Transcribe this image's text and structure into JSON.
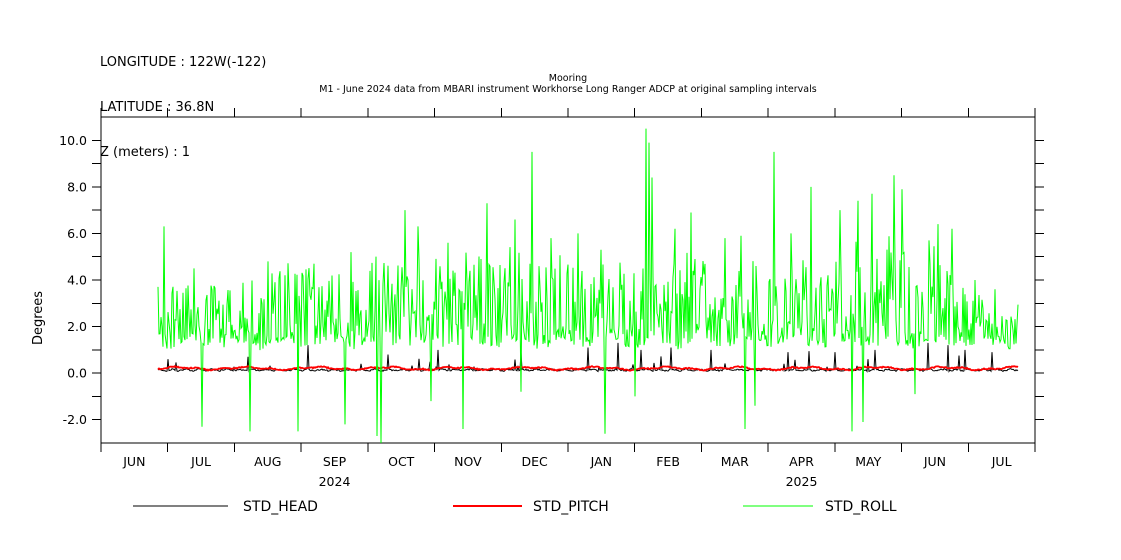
{
  "header": {
    "line1": "LONGITUDE : 122W(-122)",
    "line2": "LATITUDE : 36.8N",
    "line3": "Z (meters) : 1"
  },
  "chart_data": {
    "type": "line",
    "title": "Mooring",
    "subtitle": "M1 - June 2024 data from MBARI instrument Workhorse Long Ranger ADCP at original sampling intervals",
    "ylabel": "Degrees",
    "ylim": [
      -3,
      11
    ],
    "ytick_values": [
      -2,
      0,
      2,
      4,
      6,
      8,
      10
    ],
    "ytick_labels": [
      "-2.0",
      "0.0",
      "2.0",
      "4.0",
      "6.0",
      "8.0",
      "10.0"
    ],
    "ytick_minor_step": 1,
    "grid": false,
    "legend_position": "bottom",
    "x_month_labels": [
      "JUN",
      "JUL",
      "AUG",
      "SEP",
      "OCT",
      "NOV",
      "DEC",
      "JAN",
      "FEB",
      "MAR",
      "APR",
      "MAY",
      "JUN",
      "JUL"
    ],
    "year_labels": [
      {
        "text": "2024",
        "month_center": 3.5
      },
      {
        "text": "2025",
        "month_center": 10.5
      }
    ],
    "data_start_month": 0.85,
    "data_end_month": 13.74,
    "series": [
      {
        "name": "STD_HEAD",
        "color": "#000000",
        "width": 1,
        "base": 0.1,
        "noise": 0.07,
        "typical_range": [
          0.05,
          0.35
        ],
        "spikes": [
          [
            1.0,
            0.6
          ],
          [
            2.2,
            0.7
          ],
          [
            3.1,
            1.2
          ],
          [
            4.3,
            0.8
          ],
          [
            5.05,
            1.0
          ],
          [
            6.3,
            0.9
          ],
          [
            7.3,
            1.1
          ],
          [
            7.75,
            1.3
          ],
          [
            8.1,
            1.0
          ],
          [
            8.55,
            1.1
          ],
          [
            9.15,
            1.0
          ],
          [
            10.3,
            0.9
          ],
          [
            11.0,
            0.9
          ],
          [
            11.6,
            1.0
          ],
          [
            12.4,
            1.3
          ],
          [
            12.7,
            1.2
          ],
          [
            12.95,
            1.0
          ],
          [
            13.35,
            0.9
          ]
        ]
      },
      {
        "name": "STD_PITCH",
        "color": "#ff0000",
        "width": 1.8,
        "base": 0.18,
        "noise": 0.05,
        "typical_range": [
          0.1,
          0.3
        ],
        "spikes": []
      },
      {
        "name": "STD_ROLL",
        "color": "#00ff00",
        "width": 1,
        "base": 1.4,
        "noise": 0.5,
        "typical_range": [
          1.2,
          4.5
        ],
        "envelope": [
          [
            0.85,
            2.6
          ],
          [
            1.2,
            1.6
          ],
          [
            2.0,
            1.8
          ],
          [
            3.0,
            2.2
          ],
          [
            3.6,
            2.4
          ],
          [
            4.3,
            2.5
          ],
          [
            5.0,
            2.3
          ],
          [
            5.8,
            2.6
          ],
          [
            6.5,
            2.6
          ],
          [
            7.2,
            2.2
          ],
          [
            7.8,
            2.3
          ],
          [
            8.5,
            2.7
          ],
          [
            9.2,
            2.4
          ],
          [
            9.8,
            2.6
          ],
          [
            10.5,
            2.5
          ],
          [
            11.2,
            2.7
          ],
          [
            11.8,
            3.3
          ],
          [
            12.3,
            3.0
          ],
          [
            12.8,
            2.2
          ],
          [
            13.3,
            1.5
          ],
          [
            13.74,
            1.3
          ]
        ],
        "spikes": [
          [
            0.95,
            6.3
          ],
          [
            1.4,
            4.5
          ],
          [
            2.5,
            4.8
          ],
          [
            3.2,
            4.7
          ],
          [
            3.75,
            5.2
          ],
          [
            4.55,
            7.0
          ],
          [
            4.75,
            6.3
          ],
          [
            5.2,
            5.6
          ],
          [
            5.78,
            7.3
          ],
          [
            6.2,
            6.6
          ],
          [
            6.46,
            9.5
          ],
          [
            6.75,
            5.8
          ],
          [
            7.15,
            6.0
          ],
          [
            7.5,
            5.3
          ],
          [
            8.17,
            10.5
          ],
          [
            8.21,
            9.9
          ],
          [
            8.26,
            8.4
          ],
          [
            8.6,
            6.2
          ],
          [
            8.85,
            6.9
          ],
          [
            9.35,
            5.8
          ],
          [
            9.6,
            5.9
          ],
          [
            10.09,
            9.5
          ],
          [
            10.35,
            6.0
          ],
          [
            10.64,
            8.0
          ],
          [
            11.08,
            7.0
          ],
          [
            11.35,
            7.4
          ],
          [
            11.55,
            7.7
          ],
          [
            11.88,
            8.5
          ],
          [
            12.0,
            7.9
          ],
          [
            12.2,
            7.0
          ],
          [
            12.55,
            6.4
          ],
          [
            12.75,
            6.2
          ],
          [
            13.1,
            4.0
          ],
          [
            13.4,
            3.6
          ]
        ],
        "neg_spikes": [
          [
            1.51,
            -2.3
          ],
          [
            2.23,
            -2.5
          ],
          [
            2.95,
            -2.5
          ],
          [
            3.65,
            -2.2
          ],
          [
            4.13,
            -2.7
          ],
          [
            4.19,
            -3.0
          ],
          [
            4.95,
            -1.2
          ],
          [
            5.43,
            -2.4
          ],
          [
            6.3,
            -0.8
          ],
          [
            7.55,
            -2.6
          ],
          [
            8.0,
            -1.0
          ],
          [
            9.65,
            -2.4
          ],
          [
            9.8,
            -1.4
          ],
          [
            11.25,
            -2.5
          ],
          [
            11.42,
            -2.1
          ],
          [
            12.2,
            -0.9
          ]
        ]
      }
    ]
  }
}
